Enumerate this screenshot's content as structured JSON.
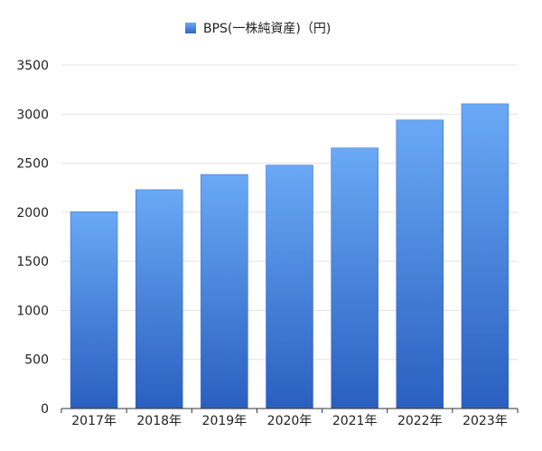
{
  "chart_data": {
    "type": "bar",
    "categories": [
      "2017年",
      "2018年",
      "2019年",
      "2020年",
      "2021年",
      "2022年",
      "2023年"
    ],
    "series": [
      {
        "name": "BPS(一株純資産)（円)",
        "values": [
          2005,
          2230,
          2385,
          2480,
          2655,
          2940,
          3105
        ]
      }
    ],
    "ylim": [
      0,
      3500
    ],
    "yticks": [
      0,
      500,
      1000,
      1500,
      2000,
      2500,
      3000,
      3500
    ],
    "grid": true,
    "legend_position": "top-center",
    "colors": {
      "bar_top": "#69a9f5",
      "bar_bottom": "#2a5fc0",
      "grid": "#e3e3e3",
      "axis": "#333333",
      "legend_swatch": "#3f7fe0"
    }
  }
}
